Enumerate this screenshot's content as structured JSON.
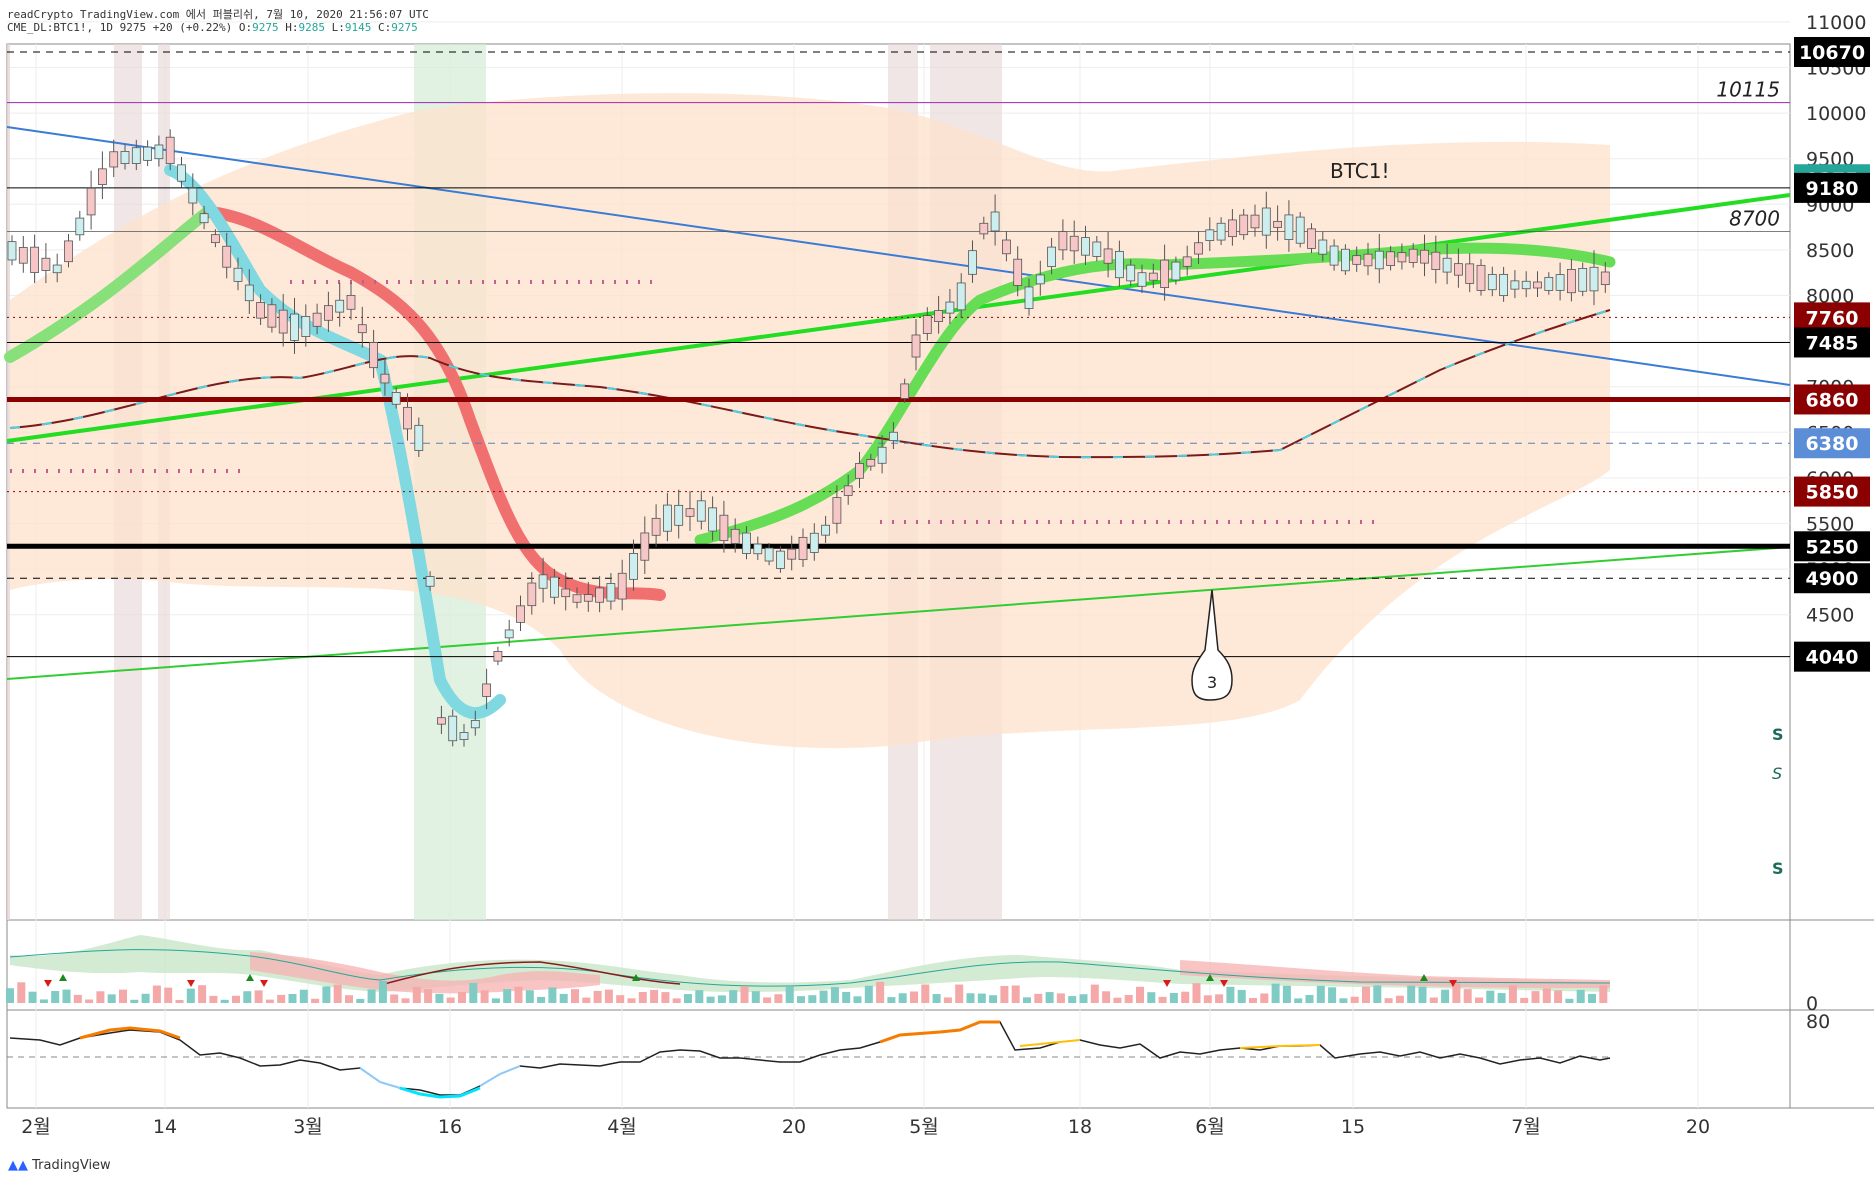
{
  "header": {
    "line1": "readCrypto TradingView.com 에서 퍼블리쉬, 7월 10, 2020 21:56:07 UTC",
    "symbol": "CME_DL:BTC1!, 1D",
    "ohlc": {
      "last": "9275",
      "chg": "+20 (+0.22%)",
      "o_label": "O:",
      "o": "9275",
      "h_label": "H:",
      "h": "9285",
      "l_label": "L:",
      "l": "9145",
      "c_label": "C:",
      "c": "9275"
    }
  },
  "chart_data": {
    "type": "candlestick",
    "symbol_label": "BTC1!",
    "x_ticks": [
      "2월",
      "14",
      "3월",
      "16",
      "4월",
      "20",
      "5월",
      "18",
      "6월",
      "15",
      "7월",
      "20"
    ],
    "y_ticks": [
      11000,
      10500,
      10000,
      9500,
      9000,
      8500,
      8000,
      7500,
      7000,
      6500,
      6000,
      5500,
      5000,
      4500
    ],
    "y_tick_text": [
      "11000",
      "10500",
      "10000",
      "9500",
      "9000",
      "8500",
      "8000",
      "7500",
      "7000",
      "6500",
      "6000",
      "5500",
      "5000",
      "4500"
    ],
    "ylim": [
      4000,
      11400
    ],
    "horizontal_levels": [
      {
        "value": 10670,
        "label": "10670",
        "style": "dashed",
        "color": "#000000"
      },
      {
        "value": 10115,
        "label": "10115",
        "style": "solid",
        "color": "#9c27b0"
      },
      {
        "value": 9275,
        "label": "9275",
        "style": "last",
        "color": "#26a69a"
      },
      {
        "value": 9180,
        "label": "9180",
        "style": "solid",
        "color": "#000000"
      },
      {
        "value": 8700,
        "label": "8700",
        "style": "thin",
        "color": "#555555"
      },
      {
        "value": 7760,
        "label": "7760",
        "style": "dotted",
        "color": "#8b0000"
      },
      {
        "value": 7485,
        "label": "7485",
        "style": "solid",
        "color": "#000000"
      },
      {
        "value": 6860,
        "label": "6860",
        "style": "thick",
        "color": "#8b0000"
      },
      {
        "value": 6380,
        "label": "6380",
        "style": "dashed",
        "color": "#5b7fb5"
      },
      {
        "value": 5850,
        "label": "5850",
        "style": "dotted",
        "color": "#8b0000"
      },
      {
        "value": 5250,
        "label": "5250",
        "style": "thick",
        "color": "#000000"
      },
      {
        "value": 4900,
        "label": "4900",
        "style": "dashed",
        "color": "#000000"
      },
      {
        "value": 4040,
        "label": "4040",
        "style": "solid",
        "color": "#000000"
      }
    ],
    "annotation_callout": "3",
    "s_markers": [
      "S",
      "S",
      "S"
    ],
    "indicator1_axis_label": "0",
    "indicator2_axis_label": "80",
    "colors": {
      "bull": "#26a69a",
      "bear": "#ef5350",
      "ema_fast": "#ef5350",
      "ema_slow": "#00e600",
      "trend": "#3a7bd5"
    }
  },
  "footer": {
    "logo_text": "TradingView"
  }
}
